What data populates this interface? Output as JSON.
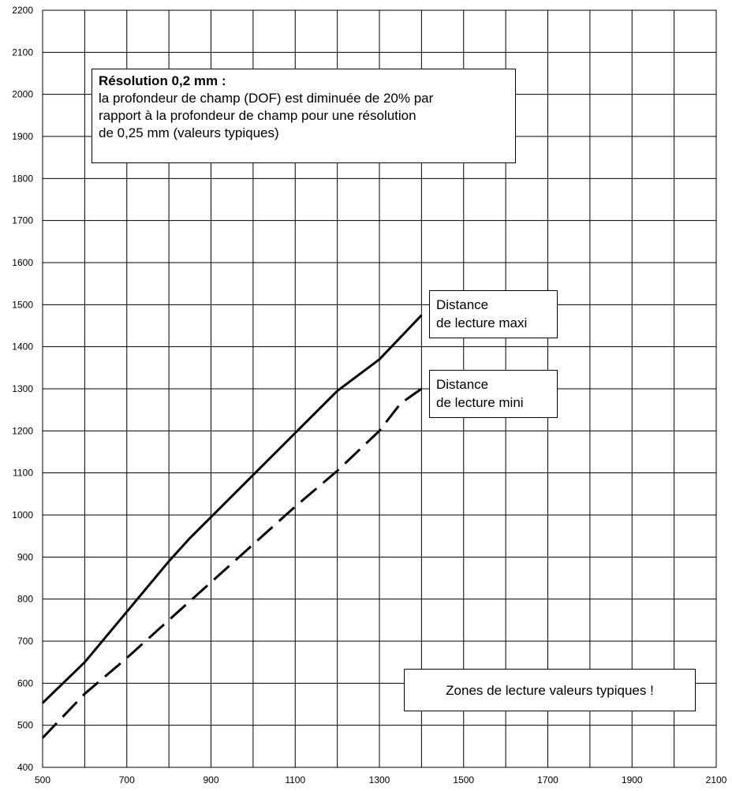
{
  "chart_data": {
    "type": "line",
    "title": "",
    "xlabel": "",
    "ylabel": "",
    "xlim": [
      500,
      2100
    ],
    "ylim": [
      400,
      2200
    ],
    "x_ticks": [
      500,
      700,
      900,
      1100,
      1300,
      1500,
      1700,
      1900,
      2100
    ],
    "x_gridlines_step": 100,
    "y_ticks": [
      400,
      500,
      600,
      700,
      800,
      900,
      1000,
      1100,
      1200,
      1300,
      1400,
      1500,
      1600,
      1700,
      1800,
      1900,
      2000,
      2100,
      2200
    ],
    "grid": true,
    "series": [
      {
        "name": "Distance de lecture maxi",
        "style": "solid",
        "color": "#000000",
        "points": [
          [
            500,
            553
          ],
          [
            600,
            650
          ],
          [
            700,
            770
          ],
          [
            800,
            890
          ],
          [
            850,
            945
          ],
          [
            1000,
            1095
          ],
          [
            1100,
            1195
          ],
          [
            1200,
            1295
          ],
          [
            1300,
            1370
          ],
          [
            1400,
            1475
          ]
        ]
      },
      {
        "name": "Distance de lecture mini",
        "style": "dashed",
        "color": "#000000",
        "points": [
          [
            500,
            470
          ],
          [
            600,
            575
          ],
          [
            700,
            660
          ],
          [
            800,
            750
          ],
          [
            900,
            840
          ],
          [
            1000,
            930
          ],
          [
            1100,
            1020
          ],
          [
            1200,
            1105
          ],
          [
            1300,
            1200
          ],
          [
            1350,
            1265
          ],
          [
            1400,
            1300
          ]
        ]
      }
    ],
    "annotations": {
      "main_title": "Résolution 0,2 mm :",
      "main_lines": [
        "la profondeur de champ (DOF) est diminuée de 20% par",
        "rapport à la profondeur de champ pour une résolution",
        "de 0,25 mm (valeurs typiques)"
      ],
      "label_maxi": [
        "Distance",
        "de lecture maxi"
      ],
      "label_mini": [
        "Distance",
        "de lecture mini"
      ],
      "note": "Zones de lecture valeurs typiques !"
    }
  }
}
